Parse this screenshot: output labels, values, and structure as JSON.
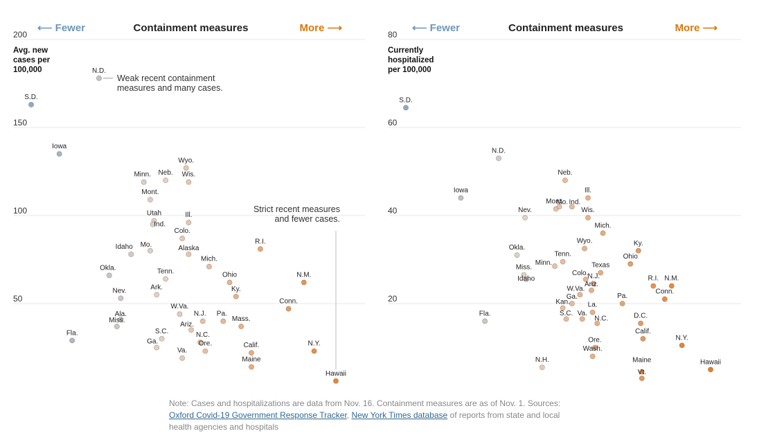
{
  "chart_data": [
    {
      "type": "scatter",
      "header": {
        "fewer": "⟵ Fewer",
        "title": "Containment measures",
        "more": "More ⟶"
      },
      "ylabel": [
        "Avg. new",
        "cases per",
        "100,000"
      ],
      "ylim": [
        0,
        200
      ],
      "yticks": [
        "200",
        "150",
        "100",
        "50"
      ],
      "annotations": [
        {
          "text": [
            "Weak recent containment",
            "measures and many cases."
          ]
        },
        {
          "text": [
            "Strict recent measures",
            "and fewer cases."
          ]
        }
      ],
      "points": [
        {
          "label": "S.D.",
          "x": -2.2,
          "y": 163
        },
        {
          "label": "N.D.",
          "x": 0.45,
          "y": 178
        },
        {
          "label": "Iowa",
          "x": -1.1,
          "y": 135
        },
        {
          "label": "Wyo.",
          "x": 3.85,
          "y": 127
        },
        {
          "label": "Minn.",
          "x": 2.2,
          "y": 119
        },
        {
          "label": "Neb.",
          "x": 3.05,
          "y": 120
        },
        {
          "label": "Wis.",
          "x": 3.95,
          "y": 119
        },
        {
          "label": "Mont.",
          "x": 2.45,
          "y": 109
        },
        {
          "label": "Utah",
          "x": 2.6,
          "y": 97
        },
        {
          "label": "Ind.",
          "x": 2.55,
          "y": 95
        },
        {
          "label": "Ill.",
          "x": 3.95,
          "y": 96
        },
        {
          "label": "Colo.",
          "x": 3.7,
          "y": 87
        },
        {
          "label": "Idaho",
          "x": 1.7,
          "y": 78
        },
        {
          "label": "Mo.",
          "x": 2.45,
          "y": 80
        },
        {
          "label": "Alaska",
          "x": 3.95,
          "y": 78
        },
        {
          "label": "Mich.",
          "x": 4.75,
          "y": 71
        },
        {
          "label": "R.I.",
          "x": 6.75,
          "y": 81
        },
        {
          "label": "Okla.",
          "x": 0.85,
          "y": 66
        },
        {
          "label": "Tenn.",
          "x": 3.05,
          "y": 64
        },
        {
          "label": "Ohio",
          "x": 5.55,
          "y": 62
        },
        {
          "label": "N.M.",
          "x": 8.45,
          "y": 62
        },
        {
          "label": "Nev.",
          "x": 1.3,
          "y": 53
        },
        {
          "label": "Ark.",
          "x": 2.7,
          "y": 55
        },
        {
          "label": "Ky.",
          "x": 5.8,
          "y": 54
        },
        {
          "label": "Conn.",
          "x": 7.85,
          "y": 47
        },
        {
          "label": "Ala.",
          "x": 1.3,
          "y": 41
        },
        {
          "label": "Miss.",
          "x": 1.15,
          "y": 37
        },
        {
          "label": "W.Va.",
          "x": 3.6,
          "y": 44
        },
        {
          "label": "N.J.",
          "x": 4.5,
          "y": 40
        },
        {
          "label": "Pa.",
          "x": 5.3,
          "y": 40
        },
        {
          "label": "Mass.",
          "x": 6.0,
          "y": 37
        },
        {
          "label": "Ariz.",
          "x": 4.05,
          "y": 35
        },
        {
          "label": "Fla.",
          "x": -0.6,
          "y": 29
        },
        {
          "label": "S.C.",
          "x": 2.9,
          "y": 30
        },
        {
          "label": "Ga.",
          "x": 2.7,
          "y": 25
        },
        {
          "label": "N.C.",
          "x": 4.4,
          "y": 28
        },
        {
          "label": "Ore.",
          "x": 4.6,
          "y": 23
        },
        {
          "label": "Va.",
          "x": 3.7,
          "y": 19
        },
        {
          "label": "Calif.",
          "x": 6.4,
          "y": 22
        },
        {
          "label": "Maine",
          "x": 6.4,
          "y": 14
        },
        {
          "label": "N.Y.",
          "x": 8.85,
          "y": 23
        },
        {
          "label": "Hawaii",
          "x": 9.7,
          "y": 6
        }
      ]
    },
    {
      "type": "scatter",
      "header": {
        "fewer": "⟵ Fewer",
        "title": "Containment measures",
        "more": "More ⟶"
      },
      "ylabel": [
        "Currently",
        "hospitalized",
        "per 100,000"
      ],
      "ylim": [
        0,
        80
      ],
      "yticks": [
        "80",
        "60",
        "40",
        "20"
      ],
      "points": [
        {
          "label": "S.D.",
          "x": -2.2,
          "y": 64.5
        },
        {
          "label": "N.D.",
          "x": 1.85,
          "y": 53
        },
        {
          "label": "Iowa",
          "x": 0.2,
          "y": 44
        },
        {
          "label": "Neb.",
          "x": 4.75,
          "y": 48
        },
        {
          "label": "Mont.",
          "x": 4.35,
          "y": 41.5
        },
        {
          "label": "Ill.",
          "x": 5.75,
          "y": 44
        },
        {
          "label": "Mo.",
          "x": 4.5,
          "y": 42
        },
        {
          "label": "Ind.",
          "x": 5.05,
          "y": 42
        },
        {
          "label": "Nev.",
          "x": 3.0,
          "y": 39.5
        },
        {
          "label": "Wis.",
          "x": 5.75,
          "y": 39.5
        },
        {
          "label": "Mich.",
          "x": 6.4,
          "y": 36
        },
        {
          "label": "Okla.",
          "x": 2.65,
          "y": 31
        },
        {
          "label": "Wyo.",
          "x": 5.6,
          "y": 32.5
        },
        {
          "label": "Ky.",
          "x": 7.95,
          "y": 32
        },
        {
          "label": "Tenn.",
          "x": 4.65,
          "y": 29.5
        },
        {
          "label": "Minn.",
          "x": 4.3,
          "y": 28.5
        },
        {
          "label": "Ohio",
          "x": 7.6,
          "y": 29
        },
        {
          "label": "Texas",
          "x": 6.3,
          "y": 27
        },
        {
          "label": "Miss.",
          "x": 2.95,
          "y": 26.5
        },
        {
          "label": "Idaho",
          "x": 3.05,
          "y": 25.5
        },
        {
          "label": "Colo.",
          "x": 5.65,
          "y": 25.5
        },
        {
          "label": "N.J.",
          "x": 6.0,
          "y": 24.5
        },
        {
          "label": "R.I.",
          "x": 8.6,
          "y": 24
        },
        {
          "label": "N.M.",
          "x": 9.4,
          "y": 24
        },
        {
          "label": "Ariz.",
          "x": 5.9,
          "y": 23
        },
        {
          "label": "W.Va.",
          "x": 5.4,
          "y": 22
        },
        {
          "label": "Conn.",
          "x": 9.1,
          "y": 21
        },
        {
          "label": "Ga.",
          "x": 5.05,
          "y": 20
        },
        {
          "label": "Kan.",
          "x": 4.65,
          "y": 19
        },
        {
          "label": "Pa.",
          "x": 7.25,
          "y": 20
        },
        {
          "label": "La.",
          "x": 5.95,
          "y": 18
        },
        {
          "label": "Fla.",
          "x": 1.25,
          "y": 16
        },
        {
          "label": "S.C.",
          "x": 4.8,
          "y": 16.5
        },
        {
          "label": "Va.",
          "x": 5.5,
          "y": 16.5
        },
        {
          "label": "N.C.",
          "x": 6.15,
          "y": 15.5
        },
        {
          "label": "D.C.",
          "x": 8.05,
          "y": 15.5
        },
        {
          "label": "Calif.",
          "x": 8.15,
          "y": 12
        },
        {
          "label": "N.Y.",
          "x": 9.85,
          "y": 10.5
        },
        {
          "label": "Ore.",
          "x": 6.05,
          "y": 10
        },
        {
          "label": "Wash.",
          "x": 5.95,
          "y": 8
        },
        {
          "label": "N.H.",
          "x": 3.75,
          "y": 5.5
        },
        {
          "label": "Maine",
          "x": 8.1,
          "y": 4.5
        },
        {
          "label": "Vt.",
          "x": 8.1,
          "y": 3
        },
        {
          "label": "Hawaii",
          "x": 11.1,
          "y": 5
        }
      ]
    }
  ],
  "note": {
    "text1": "Note: Cases and hospitalizations are data from Nov. 16. Containment measures are as of Nov. 1. Sources:",
    "link1": "Oxford Covid-19 Government Response Tracker",
    "sep": ", ",
    "link2": "New York Times database",
    "text2": " of reports from state and local health agencies and hospitals"
  }
}
